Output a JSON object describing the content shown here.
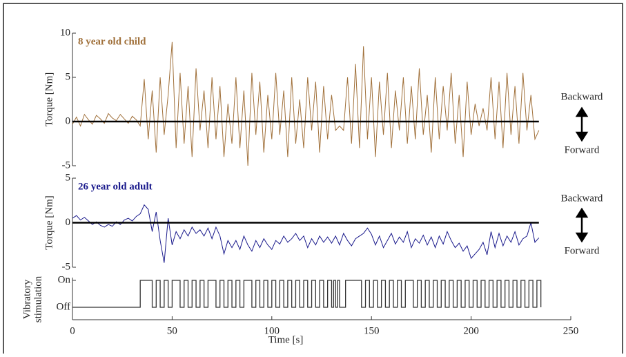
{
  "chart_data": [
    {
      "type": "line",
      "ylabel": "Torque [Nm]",
      "ylim": [
        -5,
        10
      ],
      "yticks": [
        -5,
        0,
        5,
        10
      ],
      "xlim": [
        0,
        250
      ],
      "reference_line": 0,
      "annotations": [
        "Backward",
        "Forward"
      ],
      "x": [
        0,
        2,
        4,
        6,
        8,
        10,
        12,
        14,
        16,
        18,
        20,
        22,
        24,
        26,
        28,
        30,
        32,
        34,
        36,
        38,
        40,
        42,
        44,
        46,
        48,
        50,
        52,
        54,
        56,
        58,
        60,
        62,
        64,
        66,
        68,
        70,
        72,
        74,
        76,
        78,
        80,
        82,
        84,
        86,
        88,
        90,
        92,
        94,
        96,
        98,
        100,
        102,
        104,
        106,
        108,
        110,
        112,
        114,
        116,
        118,
        120,
        122,
        124,
        126,
        128,
        130,
        132,
        134,
        136,
        138,
        140,
        142,
        144,
        146,
        148,
        150,
        152,
        154,
        156,
        158,
        160,
        162,
        164,
        166,
        168,
        170,
        172,
        174,
        176,
        178,
        180,
        182,
        184,
        186,
        188,
        190,
        192,
        194,
        196,
        198,
        200,
        202,
        204,
        206,
        208,
        210,
        212,
        214,
        216,
        218,
        220,
        222,
        224,
        226,
        228,
        230,
        232,
        234
      ],
      "series": [
        {
          "name": "8 year old child",
          "color": "#a0703a",
          "values": [
            -0.3,
            0.5,
            -0.5,
            0.8,
            0.2,
            -0.3,
            0.7,
            0.3,
            -0.2,
            0.9,
            0.4,
            0.1,
            0.8,
            0.3,
            -0.2,
            0.6,
            0.2,
            -0.5,
            4.8,
            -2,
            3.5,
            -3.5,
            5,
            -1.5,
            3,
            9,
            -3,
            5.5,
            -2.5,
            4,
            -4,
            6,
            -1,
            3.5,
            -3,
            5,
            -2,
            4,
            -4,
            2,
            -2.5,
            5,
            -3,
            3.5,
            -5,
            5.5,
            -1.5,
            4.5,
            -3.5,
            3,
            -2,
            5.5,
            -1.5,
            3.5,
            -4,
            5,
            -2.5,
            2.5,
            -3,
            5,
            -1,
            4.5,
            -3.5,
            4,
            -2,
            3,
            -1,
            -0.5,
            -1,
            5,
            -2.5,
            6.5,
            -3,
            8.5,
            -2,
            5,
            -4,
            4.5,
            -1.5,
            5.5,
            -3,
            3.5,
            -1,
            5,
            -2.5,
            4,
            -2,
            6,
            -1.5,
            3,
            -3.5,
            5,
            -2,
            4,
            -1,
            5.5,
            -2.5,
            3,
            -4,
            4.5,
            -1.5,
            2,
            -0.5,
            1.5,
            -1,
            5,
            -2,
            4.5,
            -3,
            5.5,
            -1.5,
            4,
            -2.5,
            5.5,
            -1,
            3,
            -2,
            -1
          ]
        }
      ]
    },
    {
      "type": "line",
      "ylabel": "Torque [Nm]",
      "ylim": [
        -5,
        5
      ],
      "yticks": [
        -5,
        0,
        5
      ],
      "xlim": [
        0,
        250
      ],
      "reference_line": 0,
      "annotations": [
        "Backward",
        "Forward"
      ],
      "x": [
        0,
        2,
        4,
        6,
        8,
        10,
        12,
        14,
        16,
        18,
        20,
        22,
        24,
        26,
        28,
        30,
        32,
        34,
        36,
        38,
        40,
        42,
        44,
        46,
        48,
        50,
        52,
        54,
        56,
        58,
        60,
        62,
        64,
        66,
        68,
        70,
        72,
        74,
        76,
        78,
        80,
        82,
        84,
        86,
        88,
        90,
        92,
        94,
        96,
        98,
        100,
        102,
        104,
        106,
        108,
        110,
        112,
        114,
        116,
        118,
        120,
        122,
        124,
        126,
        128,
        130,
        132,
        134,
        136,
        138,
        140,
        142,
        144,
        146,
        148,
        150,
        152,
        154,
        156,
        158,
        160,
        162,
        164,
        166,
        168,
        170,
        172,
        174,
        176,
        178,
        180,
        182,
        184,
        186,
        188,
        190,
        192,
        194,
        196,
        198,
        200,
        202,
        204,
        206,
        208,
        210,
        212,
        214,
        216,
        218,
        220,
        222,
        224,
        226,
        228,
        230,
        232,
        234
      ],
      "series": [
        {
          "name": "26 year old adult",
          "color": "#1a1a8c",
          "values": [
            0.5,
            0.8,
            0.3,
            0.6,
            0.2,
            -0.2,
            0.1,
            -0.3,
            -0.5,
            -0.2,
            -0.4,
            0.1,
            -0.2,
            0.3,
            0.5,
            0.2,
            0.7,
            1,
            2,
            1.5,
            -1,
            1.2,
            -2,
            -4.5,
            0.5,
            -2.5,
            -1,
            -1.8,
            -0.8,
            -1.5,
            -0.5,
            -1.2,
            -0.8,
            -1.5,
            -0.6,
            -1.8,
            -0.5,
            -1.5,
            -3.5,
            -2,
            -2.8,
            -2,
            -3,
            -1.5,
            -2.5,
            -3.2,
            -2,
            -2.8,
            -1.8,
            -2.5,
            -3,
            -2,
            -2.4,
            -1.5,
            -2.2,
            -1.8,
            -1.2,
            -2,
            -1.5,
            -2.8,
            -1.8,
            -2.5,
            -1.5,
            -2.2,
            -1.6,
            -2.3,
            -1.5,
            -2.5,
            -1.2,
            -2,
            -2.6,
            -1.8,
            -1.5,
            -1.2,
            -0.6,
            -1.3,
            -2.5,
            -1.5,
            -2.8,
            -2,
            -1.2,
            -2.4,
            -1.6,
            -2.2,
            -1,
            -2.8,
            -1.8,
            -2.3,
            -1.4,
            -2.5,
            -1.6,
            -2.8,
            -1.5,
            -2.4,
            -1,
            -2,
            -2.8,
            -2.3,
            -3.2,
            -2.6,
            -4,
            -3.5,
            -3,
            -2.2,
            -3.6,
            -1,
            -2.8,
            -1.2,
            -2.6,
            -1.5,
            -2.2,
            -1,
            -2.5,
            -1.8,
            -1.5,
            0,
            -2.2,
            -1.7
          ]
        }
      ]
    },
    {
      "type": "step",
      "ylabel": [
        "Vibratory",
        "stimulation"
      ],
      "xlabel": "Time [s]",
      "ylim": [
        0,
        1
      ],
      "yticks": [
        {
          "value": 1,
          "label": "On"
        },
        {
          "value": 0,
          "label": "Off"
        }
      ],
      "xlim": [
        0,
        250
      ],
      "xticks": [
        0,
        50,
        100,
        150,
        200,
        250
      ],
      "x": [
        0,
        34,
        40,
        42,
        44,
        46,
        48,
        50,
        54,
        56,
        58,
        60,
        62,
        64,
        66,
        68,
        72,
        74,
        76,
        78,
        80,
        82,
        84,
        86,
        90,
        92,
        94,
        96,
        98,
        100,
        102,
        104,
        106,
        108,
        110,
        112,
        114,
        116,
        118,
        120,
        122,
        124,
        126,
        128,
        130,
        131,
        132,
        133,
        134,
        137,
        145,
        147,
        149,
        151,
        153,
        155,
        157,
        159,
        161,
        163,
        165,
        167,
        171,
        173,
        175,
        177,
        179,
        181,
        183,
        185,
        187,
        189,
        191,
        193,
        195,
        197,
        199,
        201,
        203,
        205,
        207,
        209,
        211,
        213,
        215,
        217,
        219,
        221,
        223,
        225,
        227,
        229,
        231,
        233,
        235
      ],
      "series": [
        {
          "color": "#333333",
          "values": [
            0,
            1,
            0,
            1,
            0,
            1,
            0,
            1,
            0,
            1,
            0,
            1,
            0,
            1,
            0,
            1,
            0,
            1,
            0,
            1,
            0,
            1,
            0,
            1,
            0,
            1,
            0,
            1,
            0,
            1,
            0,
            1,
            0,
            1,
            0,
            1,
            0,
            1,
            0,
            1,
            0,
            1,
            0,
            1,
            0,
            1,
            0,
            1,
            0,
            1,
            0,
            1,
            0,
            1,
            0,
            1,
            0,
            1,
            0,
            1,
            0,
            1,
            0,
            1,
            0,
            1,
            0,
            1,
            0,
            1,
            0,
            1,
            0,
            1,
            0,
            1,
            0,
            1,
            0,
            1,
            0,
            1,
            0,
            1,
            0,
            1,
            0,
            1,
            0,
            1,
            0,
            1,
            0,
            1,
            0
          ]
        }
      ]
    }
  ]
}
